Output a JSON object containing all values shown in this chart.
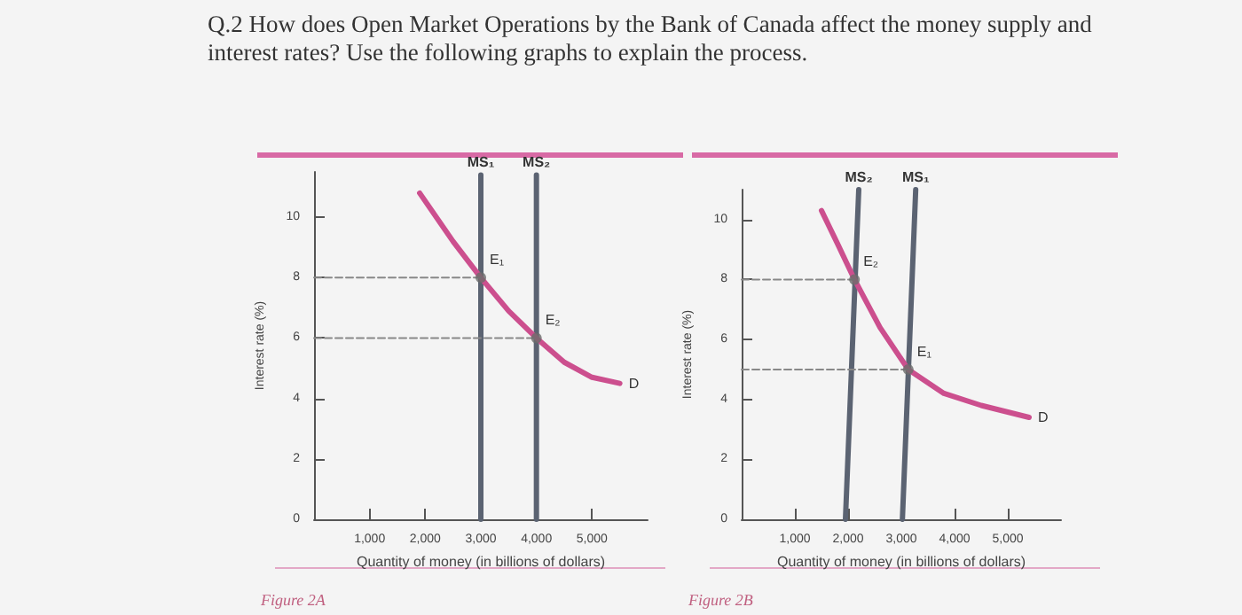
{
  "chart_data": [
    {
      "type": "line",
      "title": "Q.2 How does Open Market Operations by the Bank of Canada affect the money supply and interest rates? Use the following graphs to explain the process.",
      "xlabel": "Quantity of money (in billions of dollars)",
      "ylabel": "Interest rate (%)",
      "xlim": [
        0,
        6000
      ],
      "ylim": [
        0,
        11.5
      ],
      "xticks": [
        {
          "value": 1000,
          "label": "1,000"
        },
        {
          "value": 2000,
          "label": "2,000"
        },
        {
          "value": 3000,
          "label": "3,000"
        },
        {
          "value": 4000,
          "label": "4,000"
        },
        {
          "value": 5000,
          "label": "5,000"
        }
      ],
      "yticks": [
        0,
        2,
        4,
        6,
        8,
        10
      ],
      "grid": false,
      "legend": false,
      "marker": "none",
      "series": [
        {
          "name": "MS₁",
          "color": "#5b6372",
          "x": [
            3000,
            3000
          ],
          "values": [
            0,
            11.4
          ]
        },
        {
          "name": "MS₂",
          "color": "#5b6372",
          "x": [
            4000,
            4000
          ],
          "values": [
            0,
            11.4
          ]
        },
        {
          "name": "D",
          "color": "#cc4f8e",
          "x": [
            1900,
            2500,
            3000,
            3500,
            4000,
            4500,
            5000,
            5500
          ],
          "values": [
            10.8,
            9.2,
            8,
            6.9,
            6,
            5.2,
            4.7,
            4.5
          ]
        },
        {
          "color": "#888888",
          "line_style": "dashed",
          "x": [
            0,
            3000
          ],
          "values": [
            8,
            8
          ]
        },
        {
          "color": "#888888",
          "line_style": "dashed",
          "x": [
            0,
            4000
          ],
          "values": [
            6,
            6
          ]
        },
        {
          "type": "scatter",
          "marker": "circle",
          "color": "#6b6b6b",
          "x": [
            3000,
            4000
          ],
          "values": [
            8,
            6
          ]
        }
      ],
      "annotations": [
        {
          "text": "E₁",
          "x": 3000,
          "y": 8
        },
        {
          "text": "E₂",
          "x": 4000,
          "y": 6
        },
        "Figure 2A"
      ]
    },
    {
      "type": "line",
      "xlabel": "Quantity of money (in billions of dollars)",
      "ylabel": "Interest rate (%)",
      "xlim": [
        0,
        6000
      ],
      "ylim": [
        0,
        11
      ],
      "xticks": [
        {
          "value": 1000,
          "label": "1,000"
        },
        {
          "value": 2000,
          "label": "2,000"
        },
        {
          "value": 3000,
          "label": "3,000"
        },
        {
          "value": 4000,
          "label": "4,000"
        },
        {
          "value": 5000,
          "label": "5,000"
        }
      ],
      "yticks": [
        0,
        2,
        4,
        6,
        8,
        10
      ],
      "grid": false,
      "legend": false,
      "marker": "none",
      "series": [
        {
          "name": "MS₂",
          "color": "#5b6372",
          "x": [
            1950,
            2200
          ],
          "values": [
            0,
            11
          ]
        },
        {
          "name": "MS₁",
          "color": "#5b6372",
          "x": [
            3020,
            3270
          ],
          "values": [
            0,
            11
          ]
        },
        {
          "name": "D",
          "color": "#cc4f8e",
          "x": [
            1500,
            1800,
            2120,
            2600,
            3130,
            3800,
            4500,
            5400
          ],
          "values": [
            10.3,
            9.2,
            8,
            6.4,
            5,
            4.2,
            3.8,
            3.4
          ]
        },
        {
          "color": "#888888",
          "line_style": "dashed",
          "x": [
            0,
            2120
          ],
          "values": [
            8,
            8
          ]
        },
        {
          "color": "#888888",
          "line_style": "dashed",
          "x": [
            0,
            3130
          ],
          "values": [
            5,
            5
          ]
        },
        {
          "type": "scatter",
          "marker": "circle",
          "color": "#6b6b6b",
          "x": [
            2120,
            3130
          ],
          "values": [
            8,
            5
          ]
        }
      ],
      "annotations": [
        {
          "text": "E₂",
          "x": 2120,
          "y": 8
        },
        {
          "text": "E₁",
          "x": 3130,
          "y": 5
        },
        "Figure 2B"
      ]
    }
  ]
}
